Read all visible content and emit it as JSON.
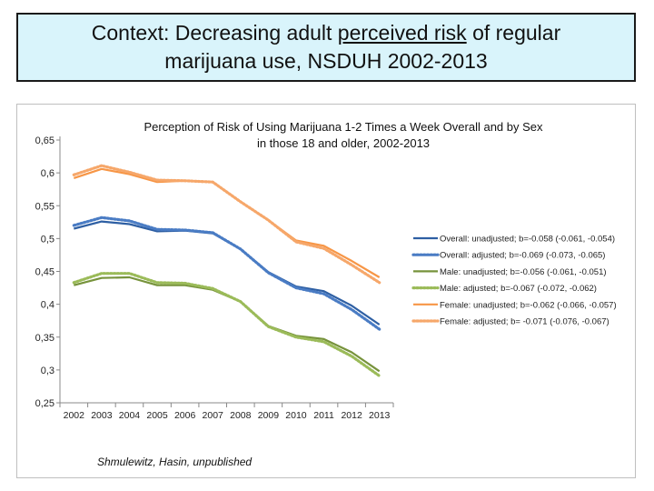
{
  "header": {
    "title_part1": "Context: Decreasing adult ",
    "title_underlined": "perceived risk",
    "title_part2": " of regular marijuana use, NSDUH 2002-2013"
  },
  "credit": "Shmulewitz, Hasin, unpublished",
  "chart_data": {
    "type": "line",
    "title": "Perception of Risk of Using Marijuana 1-2 Times a Week Overall and by Sex in those 18 and older, 2002-2013",
    "xlabel": "",
    "ylabel": "",
    "categories": [
      "2002",
      "2003",
      "2004",
      "2005",
      "2006",
      "2007",
      "2008",
      "2009",
      "2010",
      "2011",
      "2012",
      "2013"
    ],
    "ylim": [
      0.25,
      0.65
    ],
    "yticks": [
      "0,25",
      "0,3",
      "0,35",
      "0,4",
      "0,45",
      "0,5",
      "0,55",
      "0,6",
      "0,65"
    ],
    "grid": false,
    "legend_position": "right",
    "series": [
      {
        "name": "Overall: unadjusted; b=-0.058 (-0.061, -0.054)",
        "color": "#2e5fa3",
        "style": "solid",
        "values": [
          0.515,
          0.526,
          0.522,
          0.511,
          0.512,
          0.508,
          0.484,
          0.449,
          0.427,
          0.42,
          0.398,
          0.369
        ]
      },
      {
        "name": "Overall: adjusted; b=-0.069 (-0.073, -0.065)",
        "color": "#4a7cc4",
        "style": "dotted",
        "values": [
          0.52,
          0.532,
          0.527,
          0.514,
          0.513,
          0.509,
          0.484,
          0.448,
          0.425,
          0.416,
          0.392,
          0.362
        ]
      },
      {
        "name": "Male: unadjusted; b=-0.056 (-0.061, -0.051)",
        "color": "#77933c",
        "style": "solid",
        "values": [
          0.429,
          0.44,
          0.441,
          0.429,
          0.429,
          0.422,
          0.404,
          0.367,
          0.352,
          0.347,
          0.327,
          0.298
        ]
      },
      {
        "name": "Male: adjusted; b=-0.067 (-0.072, -0.062)",
        "color": "#9bbb59",
        "style": "dotted",
        "values": [
          0.433,
          0.447,
          0.447,
          0.433,
          0.432,
          0.424,
          0.404,
          0.366,
          0.35,
          0.343,
          0.321,
          0.291
        ]
      },
      {
        "name": "Female: unadjusted; b=-0.062 (-0.066, -0.057)",
        "color": "#f79646",
        "style": "solid",
        "values": [
          0.592,
          0.606,
          0.598,
          0.586,
          0.588,
          0.586,
          0.556,
          0.528,
          0.497,
          0.489,
          0.466,
          0.441
        ]
      },
      {
        "name": "Female: adjusted; b= -0.071 (-0.076, -0.067)",
        "color": "#f6a76a",
        "style": "dotted",
        "values": [
          0.597,
          0.611,
          0.601,
          0.589,
          0.588,
          0.586,
          0.556,
          0.528,
          0.495,
          0.485,
          0.46,
          0.433
        ]
      }
    ]
  }
}
